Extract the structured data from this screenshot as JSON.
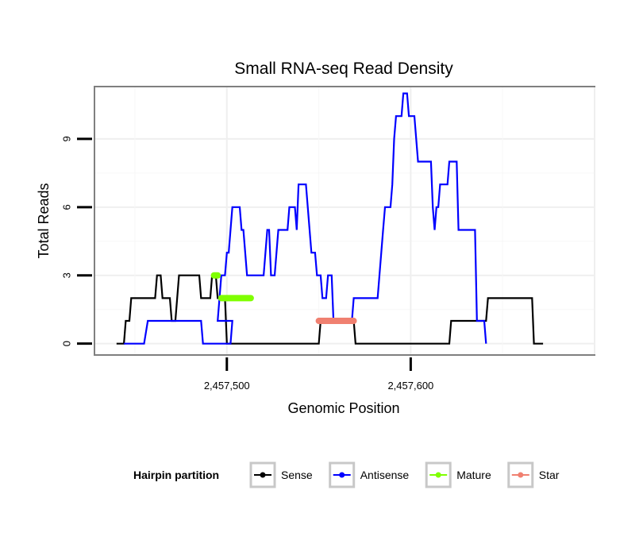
{
  "chart_data": {
    "type": "line",
    "title": "Small RNA-seq Read Density",
    "xlabel": "Genomic Position",
    "ylabel": "Total Reads",
    "xlim": [
      2457428,
      2457700
    ],
    "ylim": [
      -0.5,
      11.3
    ],
    "x_ticks": [
      {
        "value": 2457500,
        "label": "2,457,500"
      },
      {
        "value": 2457600,
        "label": "2,457,600"
      }
    ],
    "y_ticks": [
      {
        "value": 0,
        "label": "0"
      },
      {
        "value": 3,
        "label": "3"
      },
      {
        "value": 6,
        "label": "6"
      },
      {
        "value": 9,
        "label": "9"
      }
    ],
    "grid": true,
    "legend": {
      "title": "Hairpin partition",
      "position": "bottom",
      "entries": [
        {
          "name": "Sense",
          "color": "#000000"
        },
        {
          "name": "Antisense",
          "color": "#0000ff"
        },
        {
          "name": "Mature",
          "color": "#7fff00"
        },
        {
          "name": "Star",
          "color": "#f08070"
        }
      ]
    },
    "series": [
      {
        "name": "Sense",
        "color": "#000000",
        "points": [
          [
            2457440,
            0
          ],
          [
            2457444,
            0
          ],
          [
            2457445,
            1
          ],
          [
            2457447,
            1
          ],
          [
            2457448,
            2
          ],
          [
            2457461,
            2
          ],
          [
            2457462,
            3
          ],
          [
            2457464,
            3
          ],
          [
            2457465,
            2
          ],
          [
            2457469,
            2
          ],
          [
            2457470,
            1
          ],
          [
            2457472,
            1
          ],
          [
            2457473,
            2
          ],
          [
            2457474,
            3
          ],
          [
            2457485,
            3
          ],
          [
            2457486,
            2
          ],
          [
            2457491,
            2
          ],
          [
            2457492,
            3
          ],
          [
            2457494,
            3
          ],
          [
            2457495,
            2
          ],
          [
            2457499,
            2
          ],
          [
            2457500,
            0
          ],
          [
            2457550,
            0
          ],
          [
            2457551,
            1
          ],
          [
            2457569,
            1
          ],
          [
            2457570,
            0
          ],
          [
            2457621,
            0
          ],
          [
            2457622,
            1
          ],
          [
            2457641,
            1
          ],
          [
            2457642,
            2
          ],
          [
            2457666,
            2
          ],
          [
            2457667,
            0
          ],
          [
            2457672,
            0
          ]
        ]
      },
      {
        "name": "Antisense",
        "color": "#0000ff",
        "points": [
          [
            2457444,
            0
          ],
          [
            2457455,
            0
          ],
          [
            2457457,
            1
          ],
          [
            2457486,
            1
          ],
          [
            2457487,
            0
          ],
          [
            2457502,
            0
          ],
          [
            2457503,
            1
          ],
          [
            2457495,
            1
          ],
          [
            2457496,
            2
          ],
          [
            2457497,
            3
          ],
          [
            2457499,
            3
          ],
          [
            2457500,
            4
          ],
          [
            2457501,
            4
          ],
          [
            2457502,
            5
          ],
          [
            2457503,
            6
          ],
          [
            2457507,
            6
          ],
          [
            2457508,
            5
          ],
          [
            2457509,
            5
          ],
          [
            2457510,
            4
          ],
          [
            2457511,
            3
          ],
          [
            2457520,
            3
          ],
          [
            2457522,
            5
          ],
          [
            2457523,
            5
          ],
          [
            2457524,
            3
          ],
          [
            2457526,
            3
          ],
          [
            2457527,
            4
          ],
          [
            2457528,
            5
          ],
          [
            2457533,
            5
          ],
          [
            2457534,
            6
          ],
          [
            2457537,
            6
          ],
          [
            2457538,
            5
          ],
          [
            2457539,
            7
          ],
          [
            2457543,
            7
          ],
          [
            2457544,
            6
          ],
          [
            2457545,
            5
          ],
          [
            2457546,
            4
          ],
          [
            2457548,
            4
          ],
          [
            2457549,
            3
          ],
          [
            2457551,
            3
          ],
          [
            2457552,
            2
          ],
          [
            2457554,
            2
          ],
          [
            2457555,
            3
          ],
          [
            2457557,
            3
          ],
          [
            2457558,
            1
          ],
          [
            2457568,
            1
          ],
          [
            2457569,
            2
          ],
          [
            2457582,
            2
          ],
          [
            2457583,
            3
          ],
          [
            2457584,
            4
          ],
          [
            2457585,
            5
          ],
          [
            2457586,
            6
          ],
          [
            2457589,
            6
          ],
          [
            2457590,
            7
          ],
          [
            2457591,
            9
          ],
          [
            2457592,
            10
          ],
          [
            2457595,
            10
          ],
          [
            2457596,
            11
          ],
          [
            2457598,
            11
          ],
          [
            2457599,
            10
          ],
          [
            2457602,
            10
          ],
          [
            2457603,
            9
          ],
          [
            2457604,
            8
          ],
          [
            2457611,
            8
          ],
          [
            2457612,
            6
          ],
          [
            2457613,
            5
          ],
          [
            2457614,
            6
          ],
          [
            2457615,
            6
          ],
          [
            2457616,
            7
          ],
          [
            2457620,
            7
          ],
          [
            2457621,
            8
          ],
          [
            2457625,
            8
          ],
          [
            2457626,
            5
          ],
          [
            2457635,
            5
          ],
          [
            2457636,
            1
          ],
          [
            2457640,
            1
          ],
          [
            2457641,
            0
          ]
        ]
      },
      {
        "name": "Mature",
        "color": "#7fff00",
        "segments": [
          {
            "x0": 2457493,
            "x1": 2457495,
            "y": 3
          },
          {
            "x0": 2457497,
            "x1": 2457513,
            "y": 2
          }
        ]
      },
      {
        "name": "Star",
        "color": "#f08070",
        "segments": [
          {
            "x0": 2457550,
            "x1": 2457569,
            "y": 1
          }
        ]
      }
    ]
  }
}
